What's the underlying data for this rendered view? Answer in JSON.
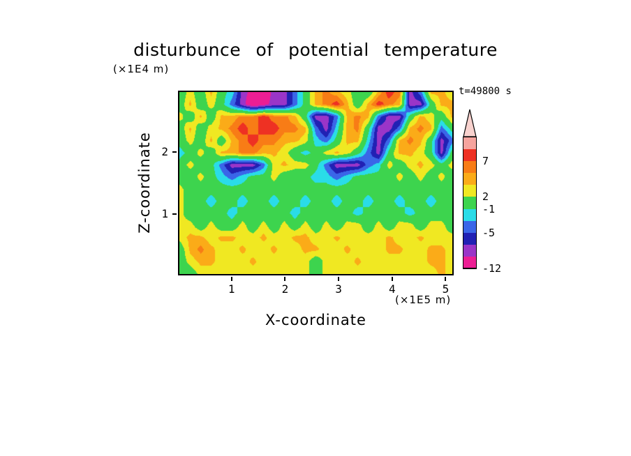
{
  "chart_data": {
    "type": "heatmap",
    "title": "disturbunce of potential temperature",
    "xlabel": "X-coordinate",
    "ylabel": "Z-coordinate",
    "x_unit": "(×1E5 m)",
    "y_unit": "(×1E4 m)",
    "time_label": "t=49800 s",
    "x_range": [
      0,
      5.15
    ],
    "z_range": [
      0,
      3.0
    ],
    "x_ticks": [
      1,
      2,
      3,
      4,
      5
    ],
    "z_ticks": [
      1,
      2
    ],
    "levels": [
      -12,
      -9,
      -7,
      -5,
      -3,
      -1,
      2,
      4,
      5.5,
      7,
      9
    ],
    "colors": [
      "#ec008c",
      "#ec1e94",
      "#9a35c8",
      "#2121b4",
      "#3a66e8",
      "#2adce8",
      "#3dd44e",
      "#f0e822",
      "#fbab18",
      "#f87c16",
      "#ee3123",
      "#f6a49e"
    ],
    "grid": {
      "x0": 0,
      "dx": 0.2,
      "z_top": 3.0,
      "dz": -0.2,
      "values": [
        [
          0,
          3,
          0,
          4.5,
          0,
          -2,
          -8,
          -10,
          -11.5,
          -8,
          -8,
          -4,
          0,
          4.5,
          6,
          4.5,
          3,
          0,
          0,
          4.5,
          8,
          6,
          -8,
          -4,
          4.5,
          4.5,
          3
        ],
        [
          0,
          4.5,
          0,
          3,
          0,
          -4,
          -8,
          -11.5,
          -10,
          -8,
          -8,
          -4,
          0,
          4.5,
          6,
          8,
          4.5,
          0,
          4.5,
          8,
          6,
          4.5,
          -8,
          -8,
          0,
          4.5,
          4.5
        ],
        [
          3,
          0,
          4.5,
          0,
          4.5,
          4.5,
          6,
          6,
          8,
          6,
          6,
          4.5,
          0,
          -8,
          -8,
          -4,
          4.5,
          6,
          4.5,
          -4,
          -8,
          -8,
          0,
          4.5,
          3,
          0,
          4.5
        ],
        [
          0,
          4.5,
          0,
          3,
          4.5,
          6,
          8,
          6,
          8,
          8,
          6,
          6,
          4.5,
          -4,
          -8,
          -2,
          4.5,
          6,
          0,
          -8,
          -8,
          -4,
          4.5,
          6,
          4.5,
          -4,
          0
        ],
        [
          0,
          3,
          0,
          4.5,
          0,
          4.5,
          6,
          8,
          6,
          6,
          4.5,
          4.5,
          3,
          -2,
          -4,
          0,
          4.5,
          4.5,
          -2,
          -8,
          -4,
          4.5,
          6,
          4.5,
          0,
          -8,
          -4
        ],
        [
          -2,
          0,
          3,
          0,
          4.5,
          4.5,
          6,
          6,
          4.5,
          4.5,
          3,
          0,
          -2,
          0,
          3,
          4.5,
          3,
          0,
          -4,
          -8,
          0,
          4.5,
          4.5,
          3,
          0,
          -8,
          0
        ],
        [
          0,
          3,
          0,
          0,
          -4,
          -8,
          -8,
          -8,
          -4,
          3,
          4.5,
          3,
          3,
          0,
          -4,
          -8,
          -8,
          -8,
          -4,
          -2,
          3,
          0,
          3,
          4.5,
          3,
          0,
          3
        ],
        [
          0,
          0,
          3,
          0,
          -2,
          -4,
          -2,
          0,
          0,
          3,
          0,
          0,
          0,
          -2,
          -2,
          -4,
          -2,
          0,
          0,
          0,
          0,
          3,
          0,
          3,
          0,
          3,
          0
        ],
        [
          3,
          0,
          0,
          0,
          0,
          0,
          0,
          0,
          0,
          0,
          0,
          0,
          0,
          0,
          0,
          0,
          0,
          0,
          0,
          0,
          0,
          0,
          0,
          0,
          0,
          0,
          0
        ],
        [
          3,
          0,
          0,
          -2,
          0,
          0,
          -2,
          0,
          0,
          -2,
          0,
          0,
          -2,
          0,
          0,
          -2,
          0,
          0,
          -2,
          0,
          0,
          -2,
          0,
          0,
          -2,
          0,
          0
        ],
        [
          3,
          0,
          0,
          0,
          0,
          -2,
          0,
          0,
          0,
          0,
          0,
          -2,
          0,
          0,
          0,
          0,
          0,
          -2,
          0,
          0,
          0,
          0,
          -2,
          0,
          0,
          0,
          0
        ],
        [
          3,
          3,
          0,
          3,
          0,
          0,
          3,
          0,
          3,
          0,
          3,
          0,
          3,
          0,
          3,
          0,
          3,
          3,
          0,
          3,
          0,
          3,
          3,
          0,
          3,
          3,
          0
        ],
        [
          3,
          4.5,
          4.5,
          3,
          4.5,
          4.5,
          3,
          3,
          4.5,
          3,
          3,
          4.5,
          4.5,
          3,
          3,
          4.5,
          3,
          3,
          3,
          3,
          4.5,
          3,
          3,
          4.5,
          3,
          3,
          3
        ],
        [
          0,
          4.5,
          6,
          4.5,
          3,
          3,
          4.5,
          3,
          3,
          4.5,
          3,
          3,
          4.5,
          4.5,
          3,
          3,
          4.5,
          3,
          3,
          3,
          4.5,
          4.5,
          3,
          3,
          4.5,
          4.5,
          3
        ],
        [
          0,
          3,
          4.5,
          4.5,
          3,
          3,
          3,
          4.5,
          3,
          3,
          3,
          3,
          3,
          0,
          3,
          3,
          3,
          4.5,
          3,
          3,
          3,
          3,
          3,
          3,
          4.5,
          4.5,
          3
        ],
        [
          0,
          0,
          3,
          3,
          3,
          3,
          3,
          3,
          3,
          3,
          3,
          3,
          3,
          0,
          3,
          3,
          3,
          3,
          3,
          3,
          3,
          3,
          3,
          3,
          3,
          4.5,
          3
        ]
      ]
    }
  },
  "colorbar": {
    "arrow_color": "#f8d2ce",
    "segments": [
      {
        "color": "#f6a49e",
        "label": ""
      },
      {
        "color": "#ee3123",
        "label": "7"
      },
      {
        "color": "#f87c16",
        "label": ""
      },
      {
        "color": "#fbab18",
        "label": ""
      },
      {
        "color": "#f0e822",
        "label": "2"
      },
      {
        "color": "#3dd44e",
        "label": "-1"
      },
      {
        "color": "#2adce8",
        "label": ""
      },
      {
        "color": "#3a66e8",
        "label": "-5"
      },
      {
        "color": "#2121b4",
        "label": ""
      },
      {
        "color": "#9a35c8",
        "label": ""
      },
      {
        "color": "#ec1e94",
        "label": "-12"
      }
    ]
  }
}
